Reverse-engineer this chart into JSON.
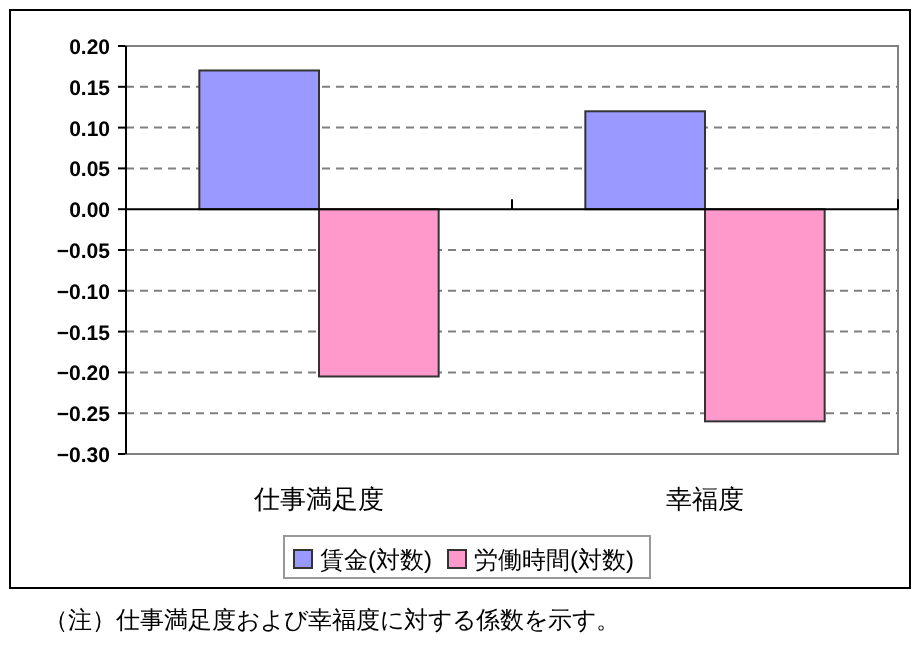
{
  "chart_data": {
    "type": "bar",
    "categories": [
      "仕事満足度",
      "幸福度"
    ],
    "series": [
      {
        "name": "賃金(対数)",
        "color": "#9999ff",
        "values": [
          0.17,
          0.12
        ]
      },
      {
        "name": "労働時間(対数)",
        "color": "#ff99cc",
        "values": [
          -0.205,
          -0.26
        ]
      }
    ],
    "ylim": [
      -0.3,
      0.2
    ],
    "yticks": [
      {
        "value": 0.2,
        "label": "0.20"
      },
      {
        "value": 0.15,
        "label": "0.15"
      },
      {
        "value": 0.1,
        "label": "0.10"
      },
      {
        "value": 0.05,
        "label": "0.05"
      },
      {
        "value": 0,
        "label": "0.00"
      },
      {
        "value": -0.05,
        "label": "−0.05"
      },
      {
        "value": -0.1,
        "label": "−0.10"
      },
      {
        "value": -0.15,
        "label": "−0.15"
      },
      {
        "value": -0.2,
        "label": "−0.20"
      },
      {
        "value": -0.25,
        "label": "−0.25"
      },
      {
        "value": -0.3,
        "label": "−0.30"
      }
    ],
    "grid": "y",
    "legend": "bottom",
    "annotations": [
      "（注）仕事満足度および幸福度に対する係数を示す。"
    ]
  }
}
